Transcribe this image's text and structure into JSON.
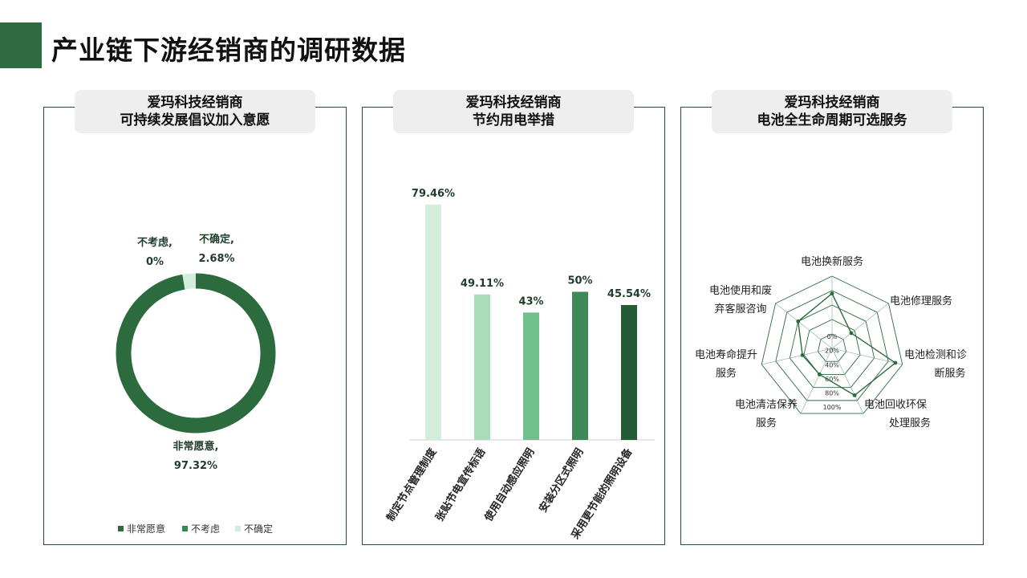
{
  "page": {
    "title": "产业链下游经销商的调研数据",
    "accent": "#2e6b40"
  },
  "panels": [
    {
      "head_line1": "爱玛科技经销商",
      "head_line2": "可持续发展倡议加入意愿"
    },
    {
      "head_line1": "爱玛科技经销商",
      "head_line2": "节约用电举措"
    },
    {
      "head_line1": "爱玛科技经销商",
      "head_line2": "电池全生命周期可选服务"
    }
  ],
  "chart_data": [
    {
      "type": "pie",
      "donut": true,
      "slices": [
        {
          "name": "非常愿意",
          "value": 97.32,
          "label_line1": "非常愿意,",
          "label_line2": "97.32%",
          "color": "#2b6b3d"
        },
        {
          "name": "不考虑",
          "value": 0,
          "label_line1": "不考虑,",
          "label_line2": "0%",
          "color": "#2e8b57"
        },
        {
          "name": "不确定",
          "value": 2.68,
          "label_line1": "不确定,",
          "label_line2": "2.68%",
          "color": "#d3ecdc"
        }
      ],
      "legend": [
        "非常愿意",
        "不考虑",
        "不确定"
      ],
      "legend_placement": "bottom"
    },
    {
      "type": "bar",
      "categories": [
        "制定节点管理制度",
        "张贴节电宣传标语",
        "使用自动感应照明",
        "安装分区式照明",
        "采用更节能的照明设备"
      ],
      "values": [
        79.46,
        49.11,
        43,
        50,
        45.54
      ],
      "value_labels": [
        "79.46%",
        "49.11%",
        "43%",
        "50%",
        "45.54%"
      ],
      "colors": [
        "#d4eedc",
        "#a9dcb8",
        "#72c08c",
        "#3d8a58",
        "#235c37"
      ],
      "ylim": [
        0,
        100
      ]
    },
    {
      "type": "radar",
      "axes": [
        "电池换新服务",
        "电池修理服务",
        "电池检测和诊断服务",
        "电池回收环保处理服务",
        "电池清洁保养服务",
        "电池寿命提升服务",
        "电池使用和废弃客服咨询"
      ],
      "axis_labels": [
        [
          "电池换新服务"
        ],
        [
          "电池修理服务"
        ],
        [
          "电池检测和诊",
          "断服务"
        ],
        [
          "电池回收环保",
          "处理服务"
        ],
        [
          "电池清洁保养",
          "服务"
        ],
        [
          "电池寿命提升",
          "服务"
        ],
        [
          "电池使用和废",
          "弃客服咨询"
        ]
      ],
      "ticks": [
        "0%",
        "20%",
        "40%",
        "60%",
        "80%",
        "100%"
      ],
      "rmax": 100,
      "values": [
        76,
        34,
        90,
        72,
        40,
        42,
        60
      ],
      "color": "#2b6b3d"
    }
  ]
}
